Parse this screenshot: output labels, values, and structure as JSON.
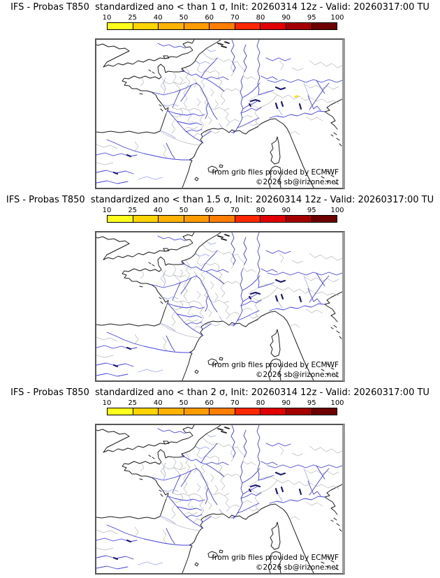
{
  "colorbar": {
    "tick_labels": [
      "10",
      "25",
      "40",
      "50",
      "60",
      "70",
      "80",
      "90",
      "95",
      "100"
    ],
    "segment_colors": [
      "#ffff1e",
      "#ffd400",
      "#ffb200",
      "#ff9c00",
      "#ff7e00",
      "#ff2800",
      "#e00000",
      "#a50000",
      "#6e0000"
    ]
  },
  "map": {
    "attribution": "from grib files provided by ECMWF",
    "copyright": "©2026 sb@irizone.net"
  },
  "panels": [
    {
      "title": "IFS - Probas T850  standardized ano < than 1 σ, Init: 20260314 12z - Valid: 20260317:00 TU",
      "highlight_spot": true,
      "spot_color": "#ffe400"
    },
    {
      "title": "IFS - Probas T850  standardized ano < than 1.5 σ, Init: 20260314 12z - Valid: 20260317:00 TU",
      "highlight_spot": false
    },
    {
      "title": "IFS - Probas T850  standardized ano < than 2 σ, Init: 20260314 12z - Valid: 20260317:00 TU",
      "highlight_spot": false
    }
  ]
}
